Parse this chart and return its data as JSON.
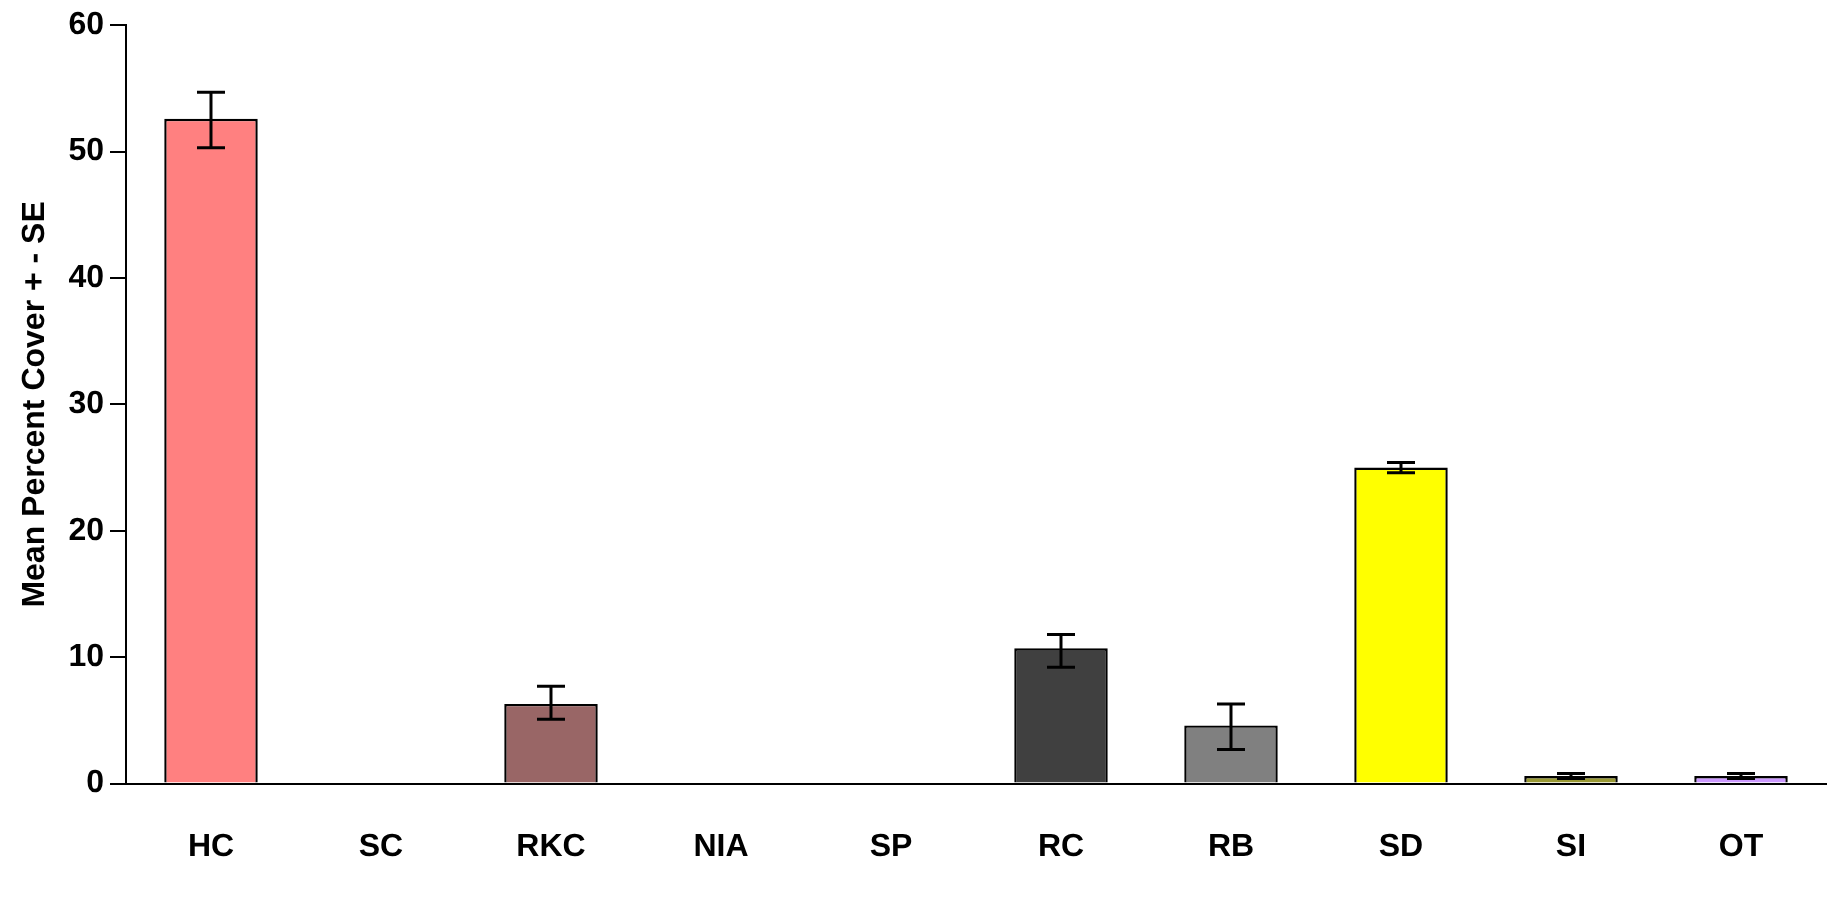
{
  "chart_data": {
    "type": "bar",
    "ylabel": "Mean Percent Cover + - SE",
    "categories": [
      "HC",
      "SC",
      "RKC",
      "NIA",
      "SP",
      "RC",
      "RB",
      "SD",
      "SI",
      "OT"
    ],
    "values": [
      52.6,
      0,
      6.3,
      0,
      0,
      10.7,
      4.6,
      25,
      0.6,
      0.6
    ],
    "colors": [
      "#ff8080",
      "#ffffff",
      "#996666",
      "#ffffff",
      "#ffffff",
      "#404040",
      "#808080",
      "#ffff00",
      "#999933",
      "#cc99ff"
    ],
    "errors": [
      [
        50.3,
        54.7
      ],
      null,
      [
        5.1,
        7.7
      ],
      null,
      null,
      [
        9.2,
        11.8
      ],
      [
        2.7,
        6.3
      ],
      [
        24.6,
        25.4
      ],
      [
        0.4,
        0.8
      ],
      [
        0.4,
        0.8
      ]
    ],
    "ylim": [
      0,
      60
    ],
    "yticks": [
      0,
      10,
      20,
      30,
      40,
      50,
      60
    ],
    "grid": false,
    "legend": false
  }
}
